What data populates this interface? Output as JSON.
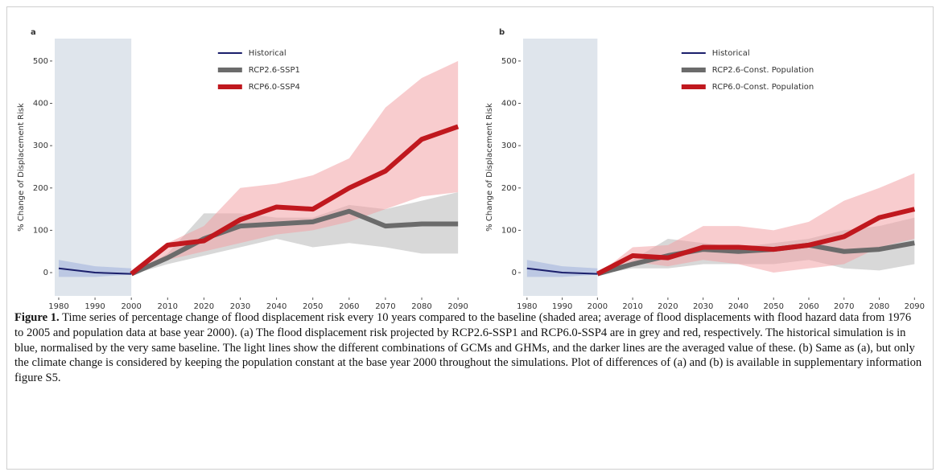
{
  "chart_data": [
    {
      "type": "line",
      "panel": "a",
      "y_label": "% Change of Displacement Risk",
      "x": [
        1980,
        1990,
        2000,
        2010,
        2020,
        2030,
        2040,
        2050,
        2060,
        2070,
        2080,
        2090
      ],
      "xlim": [
        1978.9,
        2091.3
      ],
      "xticks": [
        1980,
        1990,
        2000,
        2010,
        2020,
        2030,
        2040,
        2050,
        2060,
        2070,
        2080,
        2090
      ],
      "ylim": [
        -55,
        553
      ],
      "yticks": [
        0,
        100,
        200,
        300,
        400,
        500
      ],
      "shade_x": [
        1978.9,
        2000
      ],
      "legend": "upper center",
      "series": [
        {
          "name": "Historical",
          "color": "#1b1f6b",
          "band_color": "#9fb0dc",
          "width": 2,
          "values": [
            10,
            0,
            -3,
            null,
            null,
            null,
            null,
            null,
            null,
            null,
            null,
            null
          ],
          "lower": [
            -10,
            -10,
            -5,
            null,
            null,
            null,
            null,
            null,
            null,
            null,
            null,
            null
          ],
          "upper": [
            30,
            15,
            10,
            null,
            null,
            null,
            null,
            null,
            null,
            null,
            null,
            null
          ]
        },
        {
          "name": "RCP2.6-SSP1",
          "color": "#6b6b6b",
          "band_color": "#b8b8b8",
          "width": 6,
          "values": [
            null,
            null,
            -3,
            35,
            80,
            110,
            115,
            120,
            145,
            110,
            115,
            115
          ],
          "lower": [
            null,
            null,
            -5,
            20,
            40,
            60,
            80,
            60,
            70,
            60,
            45,
            45
          ],
          "upper": [
            null,
            null,
            -5,
            45,
            140,
            140,
            130,
            130,
            160,
            150,
            170,
            190
          ]
        },
        {
          "name": "RCP6.0-SSP4",
          "color": "#c0181e",
          "band_color": "#f3a3a6",
          "width": 6,
          "values": [
            null,
            null,
            -3,
            65,
            75,
            125,
            155,
            150,
            200,
            240,
            315,
            345
          ],
          "lower": [
            null,
            null,
            -5,
            30,
            50,
            70,
            90,
            100,
            120,
            150,
            180,
            190
          ],
          "upper": [
            null,
            null,
            -5,
            70,
            110,
            200,
            210,
            230,
            270,
            390,
            460,
            500
          ]
        }
      ]
    },
    {
      "type": "line",
      "panel": "b",
      "y_label": "% Change of Displacement Risk",
      "x": [
        1980,
        1990,
        2000,
        2010,
        2020,
        2030,
        2040,
        2050,
        2060,
        2070,
        2080,
        2090
      ],
      "xlim": [
        1978.9,
        2091.3
      ],
      "xticks": [
        1980,
        1990,
        2000,
        2010,
        2020,
        2030,
        2040,
        2050,
        2060,
        2070,
        2080,
        2090
      ],
      "ylim": [
        -55,
        553
      ],
      "yticks": [
        0,
        100,
        200,
        300,
        400,
        500
      ],
      "shade_x": [
        1978.9,
        2000
      ],
      "legend": "upper center",
      "series": [
        {
          "name": "Historical",
          "color": "#1b1f6b",
          "band_color": "#9fb0dc",
          "width": 2,
          "values": [
            10,
            0,
            -3,
            null,
            null,
            null,
            null,
            null,
            null,
            null,
            null,
            null
          ],
          "lower": [
            -10,
            -10,
            -5,
            null,
            null,
            null,
            null,
            null,
            null,
            null,
            null,
            null
          ],
          "upper": [
            30,
            15,
            10,
            null,
            null,
            null,
            null,
            null,
            null,
            null,
            null,
            null
          ]
        },
        {
          "name": "RCP2.6-Const. Population",
          "color": "#6b6b6b",
          "band_color": "#b8b8b8",
          "width": 6,
          "values": [
            null,
            null,
            -3,
            20,
            40,
            55,
            50,
            55,
            65,
            50,
            55,
            70
          ],
          "lower": [
            null,
            null,
            -5,
            10,
            10,
            20,
            20,
            20,
            30,
            10,
            5,
            20
          ],
          "upper": [
            null,
            null,
            -5,
            30,
            80,
            70,
            60,
            70,
            80,
            100,
            110,
            130
          ]
        },
        {
          "name": "RCP6.0-Const. Population",
          "color": "#c0181e",
          "band_color": "#f3a3a6",
          "width": 6,
          "values": [
            null,
            null,
            -3,
            40,
            35,
            60,
            60,
            55,
            65,
            85,
            130,
            150
          ],
          "lower": [
            null,
            null,
            -5,
            25,
            15,
            30,
            20,
            0,
            10,
            20,
            60,
            80
          ],
          "upper": [
            null,
            null,
            -5,
            60,
            65,
            110,
            110,
            100,
            120,
            170,
            200,
            235
          ]
        }
      ]
    }
  ],
  "caption": {
    "label": "Figure 1.",
    "text": "Time series of percentage change of flood displacement risk every 10 years compared to the baseline (shaded area; average of flood displacements with flood hazard data from 1976 to 2005 and population data at base year 2000). (a) The flood displacement risk projected by RCP2.6-SSP1 and RCP6.0-SSP4 are in grey and red, respectively. The historical simulation is in blue, normalised by the very same baseline. The light lines show the different combinations of GCMs and GHMs, and the darker lines are the averaged value of these. (b) Same as (a), but only the climate change is considered by keeping the population constant at the base year 2000 throughout the simulations. Plot of differences of (a) and (b) is available in supplementary information figure S5."
  }
}
